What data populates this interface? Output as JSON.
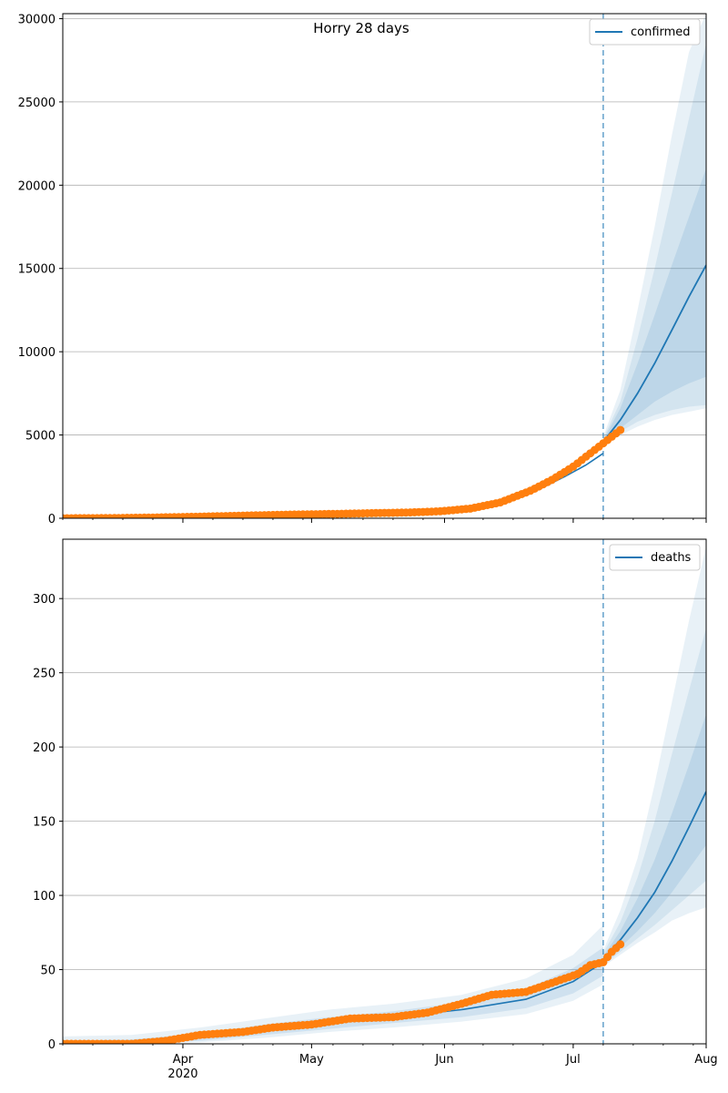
{
  "chart_data": [
    {
      "type": "line",
      "title": "Horry 28 days",
      "legend": {
        "label": "confirmed",
        "placement": "top-right"
      },
      "xlim": [
        "2020-03-04",
        "2020-08-01"
      ],
      "ylim": [
        0,
        30300
      ],
      "yticks": [
        0,
        5000,
        10000,
        15000,
        20000,
        25000,
        30000
      ],
      "grid": "y",
      "forecast_start": "2020-07-08",
      "model_fit": {
        "x": [
          "2020-03-04",
          "2020-03-15",
          "2020-03-25",
          "2020-04-05",
          "2020-04-15",
          "2020-04-25",
          "2020-05-05",
          "2020-05-15",
          "2020-05-25",
          "2020-06-01",
          "2020-06-08",
          "2020-06-15",
          "2020-06-22",
          "2020-06-29",
          "2020-07-04",
          "2020-07-08"
        ],
        "y": [
          0,
          20,
          50,
          100,
          150,
          200,
          240,
          280,
          330,
          400,
          550,
          950,
          1600,
          2500,
          3200,
          3900
        ]
      },
      "forecast": {
        "x": [
          "2020-07-08",
          "2020-07-12",
          "2020-07-16",
          "2020-07-20",
          "2020-07-24",
          "2020-07-28",
          "2020-08-01"
        ],
        "median": [
          4600,
          5900,
          7500,
          9300,
          11300,
          13300,
          15200
        ],
        "bands": [
          {
            "lower": [
              4500,
              5400,
              6200,
              7000,
              7600,
              8100,
              8500
            ],
            "upper": [
              4700,
              6600,
              9300,
              12200,
              15200,
              18100,
              21000
            ]
          },
          {
            "lower": [
              4400,
              5200,
              5800,
              6200,
              6500,
              6700,
              6800
            ],
            "upper": [
              4800,
              7000,
              10800,
              15000,
              19500,
              24000,
              28500
            ]
          },
          {
            "lower": [
              4300,
              5000,
              5500,
              5900,
              6200,
              6400,
              6600
            ],
            "upper": [
              4900,
              7700,
              12500,
              17500,
              23000,
              28000,
              30300
            ]
          }
        ]
      },
      "observed": {
        "x": [
          "2020-03-04",
          "2020-03-14",
          "2020-03-24",
          "2020-04-04",
          "2020-04-14",
          "2020-04-24",
          "2020-05-04",
          "2020-05-14",
          "2020-05-24",
          "2020-05-31",
          "2020-06-07",
          "2020-06-14",
          "2020-06-21",
          "2020-06-26",
          "2020-07-01",
          "2020-07-05",
          "2020-07-09",
          "2020-07-12"
        ],
        "y": [
          0,
          10,
          40,
          90,
          150,
          210,
          250,
          300,
          350,
          420,
          580,
          950,
          1650,
          2300,
          3100,
          3900,
          4700,
          5300
        ]
      }
    },
    {
      "type": "line",
      "title": "",
      "legend": {
        "label": "deaths",
        "placement": "top-right"
      },
      "xlim": [
        "2020-03-04",
        "2020-08-01"
      ],
      "ylim": [
        0,
        340
      ],
      "yticks": [
        0,
        50,
        100,
        150,
        200,
        250,
        300
      ],
      "xticks": [
        {
          "date": "2020-04-01",
          "label": "Apr",
          "sublabel": "2020"
        },
        {
          "date": "2020-05-01",
          "label": "May"
        },
        {
          "date": "2020-06-01",
          "label": "Jun"
        },
        {
          "date": "2020-07-01",
          "label": "Jul"
        },
        {
          "date": "2020-08-01",
          "label": "Aug"
        }
      ],
      "grid": "y",
      "forecast_start": "2020-07-08",
      "model_fit": {
        "x": [
          "2020-03-04",
          "2020-03-20",
          "2020-04-05",
          "2020-04-20",
          "2020-05-05",
          "2020-05-20",
          "2020-06-05",
          "2020-06-20",
          "2020-07-01",
          "2020-07-08"
        ],
        "y": [
          0,
          0.5,
          4,
          9,
          14,
          18,
          23,
          30,
          42,
          55
        ]
      },
      "model_band": {
        "x": [
          "2020-03-04",
          "2020-03-20",
          "2020-04-05",
          "2020-04-20",
          "2020-05-05",
          "2020-05-20",
          "2020-06-05",
          "2020-06-20",
          "2020-07-01",
          "2020-07-08"
        ],
        "inner_lower": [
          0,
          0,
          2,
          6,
          10,
          14,
          18,
          24,
          34,
          46
        ],
        "inner_upper": [
          2,
          3,
          7,
          13,
          18,
          22,
          28,
          37,
          51,
          65
        ],
        "outer_lower": [
          0,
          0,
          1,
          4,
          8,
          11,
          15,
          20,
          29,
          40
        ],
        "outer_upper": [
          5,
          6,
          11,
          17,
          23,
          27,
          33,
          44,
          60,
          80
        ]
      },
      "forecast": {
        "x": [
          "2020-07-08",
          "2020-07-12",
          "2020-07-16",
          "2020-07-20",
          "2020-07-24",
          "2020-07-28",
          "2020-08-01"
        ],
        "median": [
          57,
          70,
          85,
          102,
          123,
          146,
          170
        ],
        "bands": [
          {
            "lower": [
              55,
              65,
              76,
              88,
              102,
              118,
              134
            ],
            "upper": [
              59,
              76,
              98,
              124,
              155,
              188,
              222
            ]
          },
          {
            "lower": [
              53,
              62,
              71,
              80,
              90,
              100,
              110
            ],
            "upper": [
              61,
              82,
              112,
              150,
              195,
              238,
              280
            ]
          },
          {
            "lower": [
              52,
              60,
              68,
              75,
              83,
              88,
              92
            ],
            "upper": [
              63,
              90,
              125,
              175,
              230,
              285,
              335
            ]
          }
        ]
      },
      "observed": {
        "x": [
          "2020-03-04",
          "2020-03-20",
          "2020-03-28",
          "2020-04-05",
          "2020-04-15",
          "2020-04-22",
          "2020-05-01",
          "2020-05-10",
          "2020-05-20",
          "2020-05-28",
          "2020-06-05",
          "2020-06-12",
          "2020-06-20",
          "2020-06-27",
          "2020-07-02",
          "2020-07-05",
          "2020-07-08",
          "2020-07-10",
          "2020-07-12"
        ],
        "y": [
          0,
          0,
          2,
          6,
          8,
          11,
          13,
          17,
          18,
          21,
          27,
          33,
          35,
          42,
          47,
          53,
          55,
          62,
          67
        ]
      }
    }
  ]
}
